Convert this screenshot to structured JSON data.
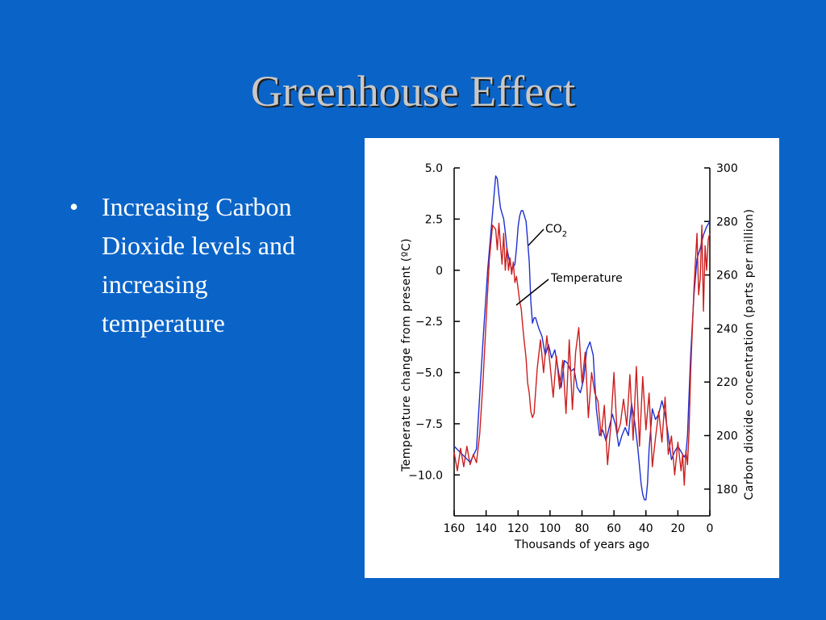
{
  "slide": {
    "title": "Greenhouse Effect",
    "bullets": [
      "Increasing Carbon Dioxide levels and increasing temperature"
    ],
    "bullet_glyph": "•"
  },
  "colors": {
    "background": "#0a64c8",
    "title": "#c8c8c8",
    "co2_series": "#1f2fd0",
    "temperature_series": "#cc1f1f"
  },
  "chart_data": {
    "type": "line",
    "title": "",
    "xlabel": "Thousands of years ago",
    "ylabel_left": "Temperature change from present (ºC)",
    "ylabel_right": "Carbon dioxide concentration (parts per million)",
    "xlim": [
      160,
      0
    ],
    "ylim_left": [
      -12,
      5
    ],
    "ylim_right": [
      170,
      300
    ],
    "x_ticks": [
      "160",
      "140",
      "120",
      "100",
      "80",
      "60",
      "40",
      "20",
      "0"
    ],
    "y_ticks_left": [
      "5.0",
      "2.5",
      "0",
      "−2.5",
      "−5.0",
      "−7.5",
      "−10.0"
    ],
    "y_ticks_right": [
      "300",
      "280",
      "260",
      "240",
      "220",
      "200",
      "180"
    ],
    "annotations": {
      "co2": "CO",
      "co2_sub": "2",
      "temperature": "Temperature"
    },
    "series": [
      {
        "name": "CO2",
        "axis": "right",
        "color": "#1f2fd0",
        "x": [
          160,
          155,
          150,
          146,
          142,
          139,
          136,
          134,
          133,
          132,
          131,
          130,
          129,
          128,
          127,
          126,
          124,
          122,
          121,
          120,
          119,
          118,
          117,
          115,
          113,
          112,
          111,
          110,
          109,
          107,
          105,
          103,
          101,
          99,
          97,
          95,
          93,
          91,
          89,
          87,
          85,
          83,
          81,
          79,
          77,
          75,
          73,
          71,
          69,
          67,
          65,
          63,
          61,
          59,
          57,
          55,
          53,
          51,
          49,
          47,
          45,
          43,
          42,
          41,
          40,
          39,
          38,
          36,
          34,
          32,
          30,
          28,
          26,
          24,
          22,
          20,
          18,
          17,
          16,
          15,
          14,
          13,
          12,
          10,
          8,
          6,
          4,
          2,
          0
        ],
        "values": [
          196,
          193,
          190,
          195,
          235,
          262,
          283,
          297,
          296,
          290,
          285,
          283,
          281,
          276,
          270,
          267,
          262,
          264,
          270,
          278,
          282,
          284,
          284,
          280,
          265,
          250,
          242,
          244,
          244,
          240,
          237,
          230,
          234,
          229,
          232,
          225,
          218,
          228,
          227,
          224,
          225,
          218,
          216,
          221,
          232,
          235,
          230,
          210,
          200,
          202,
          198,
          203,
          208,
          204,
          196,
          200,
          203,
          200,
          212,
          205,
          195,
          182,
          178,
          176,
          176,
          182,
          195,
          210,
          206,
          208,
          213,
          208,
          200,
          191,
          194,
          196,
          194,
          193,
          192,
          193,
          200,
          215,
          230,
          252,
          266,
          270,
          275,
          278,
          280
        ]
      },
      {
        "name": "Temperature",
        "axis": "left",
        "color": "#cc1f1f",
        "x": [
          160,
          158,
          156,
          154,
          152,
          150,
          148,
          146,
          144,
          142,
          140,
          138,
          136,
          134,
          133,
          132,
          131,
          130,
          129,
          128,
          127,
          126,
          125,
          124,
          123,
          122,
          121,
          120,
          119,
          118,
          117,
          116,
          115,
          114,
          113,
          112,
          111,
          110,
          108,
          106,
          104,
          102,
          100,
          98,
          96,
          94,
          92,
          90,
          88,
          86,
          84,
          82,
          80,
          78,
          76,
          74,
          72,
          70,
          68,
          66,
          64,
          62,
          60,
          58,
          56,
          54,
          52,
          50,
          48,
          46,
          44,
          42,
          40,
          38,
          36,
          34,
          32,
          30,
          28,
          26,
          24,
          22,
          20,
          18,
          17,
          16,
          15,
          14,
          13,
          12,
          11,
          10,
          9,
          8,
          7,
          6,
          5,
          4,
          3,
          2,
          1,
          0
        ],
        "values": [
          -8.9,
          -9.8,
          -8.7,
          -9.6,
          -8.6,
          -9.5,
          -9.0,
          -9.4,
          -8.0,
          -5.5,
          -2.5,
          0.5,
          2.2,
          2.0,
          1.0,
          2.3,
          1.2,
          0.3,
          1.8,
          0.0,
          1.1,
          0.0,
          0.6,
          -0.2,
          0.4,
          -0.6,
          -0.3,
          -0.9,
          -1.5,
          -1.9,
          -2.8,
          -3.6,
          -4.3,
          -5.5,
          -6.0,
          -6.9,
          -7.2,
          -7.0,
          -4.8,
          -3.4,
          -5.0,
          -3.2,
          -4.6,
          -6.2,
          -4.2,
          -5.8,
          -4.4,
          -7.0,
          -3.4,
          -6.8,
          -4.0,
          -2.8,
          -5.5,
          -4.0,
          -7.2,
          -5.0,
          -6.0,
          -6.4,
          -8.1,
          -6.6,
          -9.5,
          -7.6,
          -5.0,
          -8.0,
          -7.5,
          -6.3,
          -7.6,
          -5.1,
          -8.3,
          -4.7,
          -8.6,
          -5.2,
          -7.8,
          -6.0,
          -9.6,
          -8.2,
          -6.9,
          -8.4,
          -6.2,
          -9.0,
          -8.1,
          -10.0,
          -8.4,
          -9.8,
          -9.0,
          -10.5,
          -8.8,
          -9.5,
          -7.9,
          -5.0,
          -3.0,
          -1.0,
          0.5,
          1.8,
          -1.2,
          -0.4,
          2.2,
          -2.0,
          1.2,
          0.0,
          1.5,
          1.8
        ]
      }
    ]
  }
}
